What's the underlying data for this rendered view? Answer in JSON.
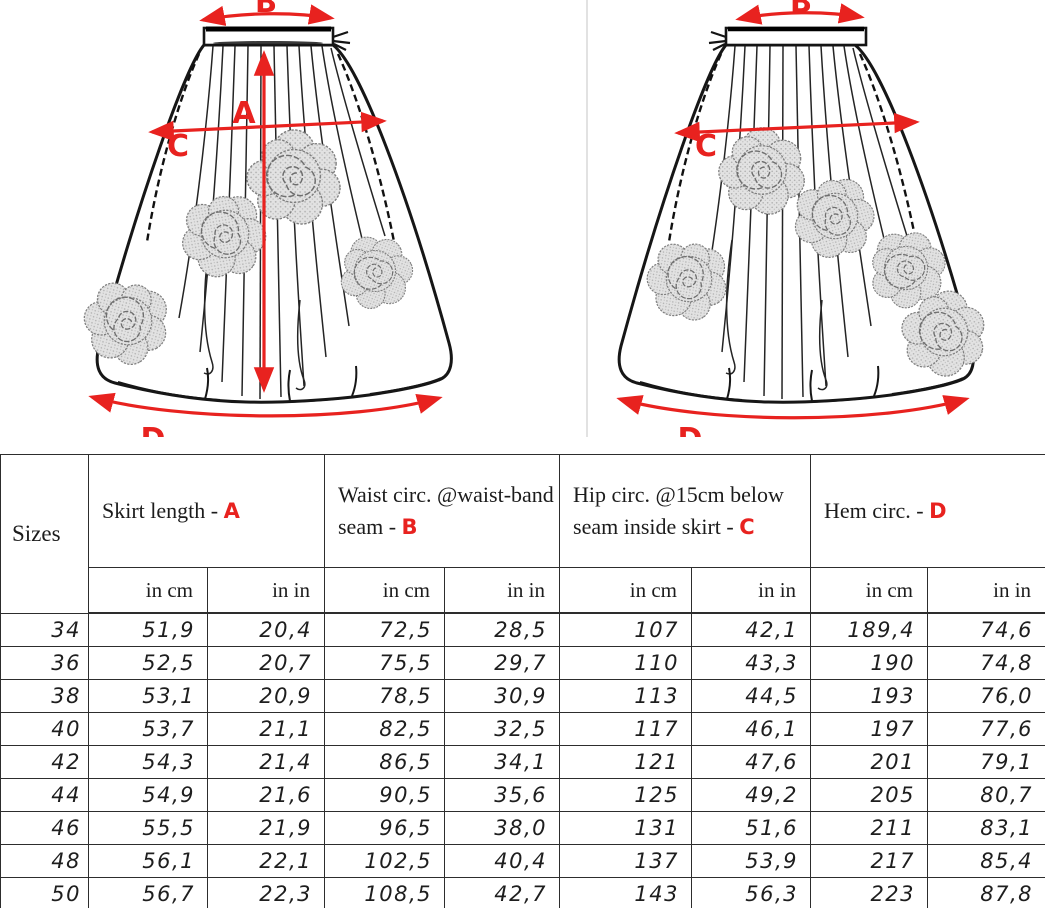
{
  "diagram": {
    "accent_color": "#e8221f",
    "front": {
      "a": "A",
      "b": "B",
      "c": "C",
      "d": "D"
    },
    "back": {
      "b": "B",
      "c": "C",
      "d": "D"
    }
  },
  "chart_data": {
    "type": "table",
    "corner_header": "Sizes",
    "column_groups": [
      {
        "text": "Skirt length - ",
        "letter": "A"
      },
      {
        "text": "Waist circ. @waist-band seam - ",
        "letter": "B"
      },
      {
        "text": "Hip circ. @15cm below seam inside skirt - ",
        "letter": "C"
      },
      {
        "text": "Hem circ. - ",
        "letter": "D"
      }
    ],
    "unit_cm": "in cm",
    "unit_in": "in in",
    "rows": [
      {
        "size": "34",
        "values": [
          "51,9",
          "20,4",
          "72,5",
          "28,5",
          "107",
          "42,1",
          "189,4",
          "74,6"
        ]
      },
      {
        "size": "36",
        "values": [
          "52,5",
          "20,7",
          "75,5",
          "29,7",
          "110",
          "43,3",
          "190",
          "74,8"
        ]
      },
      {
        "size": "38",
        "values": [
          "53,1",
          "20,9",
          "78,5",
          "30,9",
          "113",
          "44,5",
          "193",
          "76,0"
        ]
      },
      {
        "size": "40",
        "values": [
          "53,7",
          "21,1",
          "82,5",
          "32,5",
          "117",
          "46,1",
          "197",
          "77,6"
        ]
      },
      {
        "size": "42",
        "values": [
          "54,3",
          "21,4",
          "86,5",
          "34,1",
          "121",
          "47,6",
          "201",
          "79,1"
        ]
      },
      {
        "size": "44",
        "values": [
          "54,9",
          "21,6",
          "90,5",
          "35,6",
          "125",
          "49,2",
          "205",
          "80,7"
        ]
      },
      {
        "size": "46",
        "values": [
          "55,5",
          "21,9",
          "96,5",
          "38,0",
          "131",
          "51,6",
          "211",
          "83,1"
        ]
      },
      {
        "size": "48",
        "values": [
          "56,1",
          "22,1",
          "102,5",
          "40,4",
          "137",
          "53,9",
          "217",
          "85,4"
        ]
      },
      {
        "size": "50",
        "values": [
          "56,7",
          "22,3",
          "108,5",
          "42,7",
          "143",
          "56,3",
          "223",
          "87,8"
        ]
      }
    ]
  }
}
